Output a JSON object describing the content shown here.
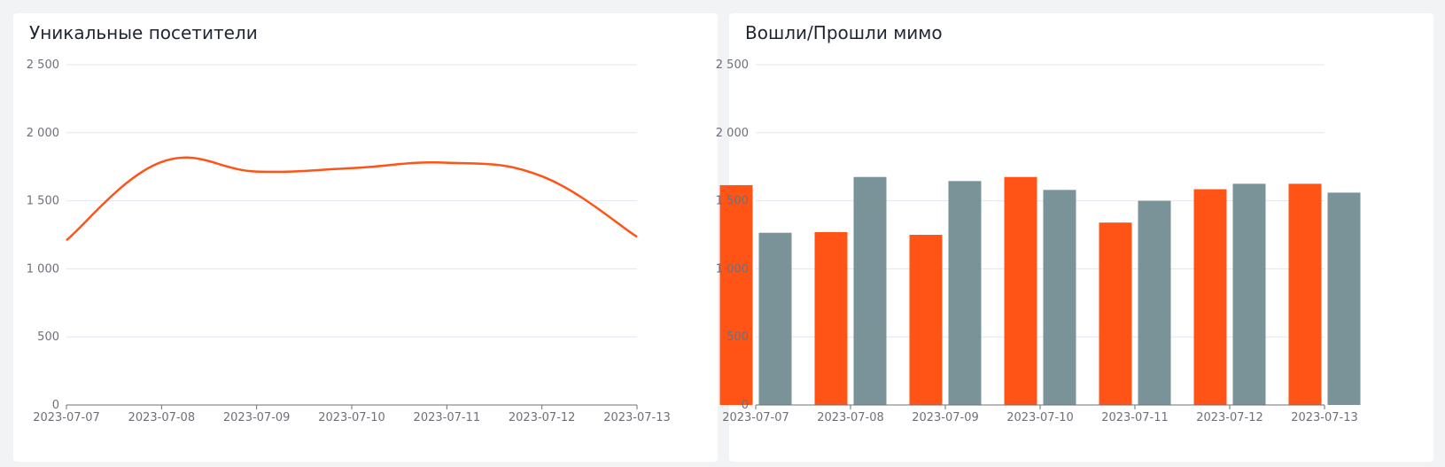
{
  "panels": [
    {
      "title": "Уникальные посетители"
    },
    {
      "title": "Вошли/Прошли мимо"
    }
  ],
  "colors": {
    "line": "#ff5416",
    "bar_primary": "#ff5416",
    "bar_secondary": "#7a9399",
    "grid": "#e0e6f1",
    "axis": "#6e7079",
    "background": "#f2f3f5",
    "card": "#ffffff"
  },
  "chart_data": [
    {
      "type": "line",
      "smooth": true,
      "title": "Уникальные посетители",
      "x": [
        "2023-07-07",
        "2023-07-08",
        "2023-07-09",
        "2023-07-10",
        "2023-07-11",
        "2023-07-12",
        "2023-07-13"
      ],
      "y_tick_labels": [
        "0",
        "500",
        "1 000",
        "1 500",
        "2 000",
        "2 500"
      ],
      "ylim": [
        0,
        2500
      ],
      "grid": true,
      "series": [
        {
          "values": [
            1210,
            1785,
            1715,
            1740,
            1780,
            1680,
            1235
          ]
        }
      ]
    },
    {
      "type": "bar",
      "title": "Вошли/Прошли мимо",
      "categories": [
        "2023-07-07",
        "2023-07-08",
        "2023-07-09",
        "2023-07-10",
        "2023-07-11",
        "2023-07-12",
        "2023-07-13"
      ],
      "y_tick_labels": [
        "0",
        "500",
        "1 000",
        "1 500",
        "2 000",
        "2 500"
      ],
      "ylim": [
        0,
        2500
      ],
      "grid": true,
      "series": [
        {
          "values": [
            1615,
            1270,
            1250,
            1675,
            1340,
            1585,
            1625
          ]
        },
        {
          "values": [
            1265,
            1675,
            1645,
            1580,
            1500,
            1625,
            1560
          ]
        }
      ]
    }
  ]
}
